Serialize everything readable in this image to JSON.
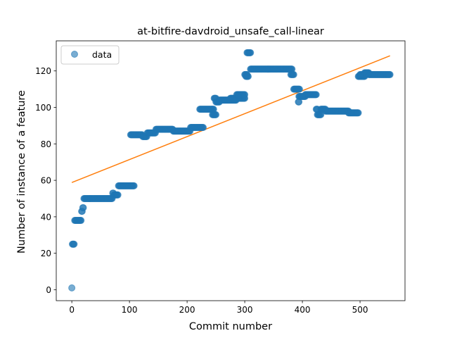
{
  "chart_data": {
    "type": "scatter",
    "title": "at-bitfire-davdroid_unsafe_call-linear",
    "xlabel": "Commit number",
    "ylabel": "Number of instance of a feature",
    "xlim": [
      -27,
      578
    ],
    "ylim": [
      -6,
      136.5
    ],
    "xticks": [
      0,
      100,
      200,
      300,
      400,
      500
    ],
    "yticks": [
      0,
      20,
      40,
      60,
      80,
      100,
      120
    ],
    "grid": false,
    "legend": {
      "position": "top-left",
      "entries": [
        "data"
      ]
    },
    "colors": {
      "data": "#1f77b4",
      "fit": "#ff7f0e"
    },
    "series": [
      {
        "name": "data",
        "kind": "points",
        "segments": [
          {
            "x0": 0,
            "x1": 0,
            "y": 1
          },
          {
            "x0": 1,
            "x1": 4,
            "y": 25
          },
          {
            "x0": 5,
            "x1": 16,
            "y": 38
          },
          {
            "x0": 17,
            "x1": 18,
            "y": 43
          },
          {
            "x0": 19,
            "x1": 20,
            "y": 45
          },
          {
            "x0": 21,
            "x1": 70,
            "y": 50
          },
          {
            "x0": 71,
            "x1": 72,
            "y": 53
          },
          {
            "x0": 73,
            "x1": 80,
            "y": 52
          },
          {
            "x0": 81,
            "x1": 108,
            "y": 57
          },
          {
            "x0": 102,
            "x1": 122,
            "y": 85
          },
          {
            "x0": 123,
            "x1": 130,
            "y": 84
          },
          {
            "x0": 131,
            "x1": 145,
            "y": 86
          },
          {
            "x0": 146,
            "x1": 175,
            "y": 88
          },
          {
            "x0": 176,
            "x1": 205,
            "y": 87
          },
          {
            "x0": 206,
            "x1": 228,
            "y": 89
          },
          {
            "x0": 222,
            "x1": 246,
            "y": 99
          },
          {
            "x0": 244,
            "x1": 250,
            "y": 96
          },
          {
            "x0": 247,
            "x1": 250,
            "y": 105
          },
          {
            "x0": 250,
            "x1": 256,
            "y": 103
          },
          {
            "x0": 256,
            "x1": 285,
            "y": 104
          },
          {
            "x0": 275,
            "x1": 300,
            "y": 105
          },
          {
            "x0": 286,
            "x1": 300,
            "y": 107
          },
          {
            "x0": 300,
            "x1": 304,
            "y": 118
          },
          {
            "x0": 302,
            "x1": 306,
            "y": 117
          },
          {
            "x0": 304,
            "x1": 310,
            "y": 130
          },
          {
            "x0": 310,
            "x1": 382,
            "y": 121
          },
          {
            "x0": 380,
            "x1": 385,
            "y": 118
          },
          {
            "x0": 385,
            "x1": 395,
            "y": 110
          },
          {
            "x0": 393,
            "x1": 394,
            "y": 103
          },
          {
            "x0": 394,
            "x1": 405,
            "y": 106
          },
          {
            "x0": 405,
            "x1": 424,
            "y": 107
          },
          {
            "x0": 424,
            "x1": 426,
            "y": 99
          },
          {
            "x0": 426,
            "x1": 432,
            "y": 96
          },
          {
            "x0": 432,
            "x1": 440,
            "y": 99
          },
          {
            "x0": 440,
            "x1": 480,
            "y": 98
          },
          {
            "x0": 480,
            "x1": 497,
            "y": 97
          },
          {
            "x0": 497,
            "x1": 508,
            "y": 117
          },
          {
            "x0": 500,
            "x1": 510,
            "y": 118
          },
          {
            "x0": 508,
            "x1": 515,
            "y": 119
          },
          {
            "x0": 515,
            "x1": 552,
            "y": 118
          }
        ]
      },
      {
        "kind": "line",
        "points": [
          [
            0,
            58.8
          ],
          [
            552,
            128.3
          ]
        ]
      }
    ]
  }
}
